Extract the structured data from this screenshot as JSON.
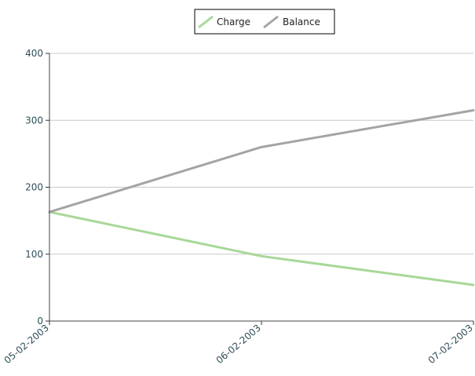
{
  "chart_data": {
    "type": "line",
    "x": [
      "05-02-2003",
      "06-02-2003",
      "07-02-2003"
    ],
    "series": [
      {
        "name": "Charge",
        "values": [
          163,
          97,
          54
        ],
        "color": "#a8d898"
      },
      {
        "name": "Balance",
        "values": [
          163,
          260,
          315
        ],
        "color": "#a4a4a4"
      }
    ],
    "ylim": [
      0,
      400
    ],
    "yticks": [
      0,
      100,
      200,
      300,
      400
    ],
    "grid": true,
    "legend_position": "top-center",
    "title": "",
    "xlabel": "",
    "ylabel": ""
  }
}
